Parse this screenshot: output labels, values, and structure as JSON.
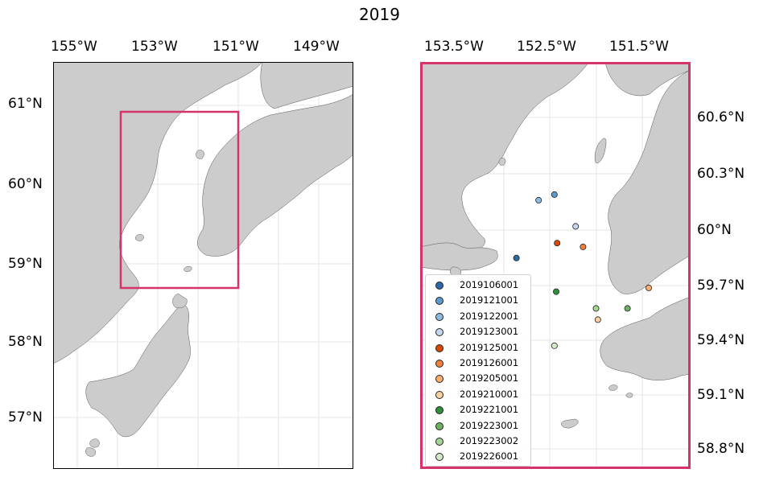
{
  "title": "2019",
  "left_map": {
    "lon_ticks": [
      "155°W",
      "153°W",
      "151°W",
      "149°W"
    ],
    "lat_ticks": [
      "61°N",
      "60°N",
      "59°N",
      "58°N",
      "57°N"
    ],
    "inset_box_color": "#d6336c"
  },
  "right_map": {
    "lon_ticks": [
      "153.5°W",
      "152.5°W",
      "151.5°W"
    ],
    "lat_ticks": [
      "60.6°N",
      "60.3°N",
      "60°N",
      "59.7°N",
      "59.4°N",
      "59.1°N",
      "58.8°N"
    ],
    "frame_color": "#d6336c",
    "land_color": "#cccccc"
  },
  "stations": [
    {
      "id": "2019106001",
      "color": "#2b6aa8",
      "lon": -152.86,
      "lat": 59.85
    },
    {
      "id": "2019121001",
      "color": "#5b9bd1",
      "lon": -152.45,
      "lat": 60.19
    },
    {
      "id": "2019122001",
      "color": "#8bbbe0",
      "lon": -152.62,
      "lat": 60.16
    },
    {
      "id": "2019123001",
      "color": "#c3d7ee",
      "lon": -152.22,
      "lat": 60.02
    },
    {
      "id": "2019125001",
      "color": "#d94801",
      "lon": -152.42,
      "lat": 59.93
    },
    {
      "id": "2019126001",
      "color": "#f0803c",
      "lon": -152.14,
      "lat": 59.91
    },
    {
      "id": "2019205001",
      "color": "#fdae6b",
      "lon": -151.43,
      "lat": 59.69
    },
    {
      "id": "2019210001",
      "color": "#fdd0a2",
      "lon": -151.98,
      "lat": 59.52
    },
    {
      "id": "2019221001",
      "color": "#2f8f3a",
      "lon": -152.43,
      "lat": 59.67
    },
    {
      "id": "2019223001",
      "color": "#6cb35f",
      "lon": -151.66,
      "lat": 59.58
    },
    {
      "id": "2019223002",
      "color": "#a3d595",
      "lon": -152.0,
      "lat": 59.58
    },
    {
      "id": "2019226001",
      "color": "#d2ecc9",
      "lon": -152.45,
      "lat": 59.38
    }
  ]
}
